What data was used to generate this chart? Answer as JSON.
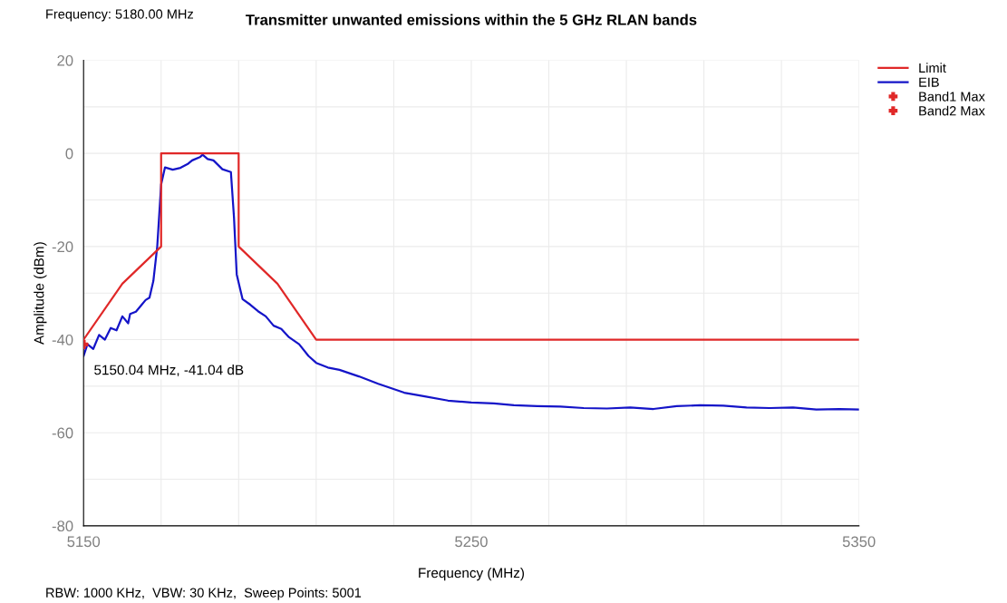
{
  "chart_data": {
    "type": "line",
    "title": "Transmitter unwanted emissions within the 5 GHz RLAN bands",
    "xlabel": "Frequency (MHz)",
    "ylabel": "Amplitude (dBm)",
    "annotations": [
      "Frequency: 5180.00 MHz",
      "RBW: 1000 KHz,  VBW: 30 KHz,  Sweep Points: 5001",
      {
        "text": "5150.04 MHz, -41.04 dB",
        "x": 5150.04,
        "y": -41.04
      }
    ],
    "xlim": [
      5150,
      5350
    ],
    "ylim": [
      -80,
      20
    ],
    "xticks": [
      5150,
      {
        "value": 5170,
        "label": null
      },
      {
        "value": 5190,
        "label": null
      },
      {
        "value": 5210,
        "label": null
      },
      {
        "value": 5230,
        "label": null
      },
      5250,
      {
        "value": 5270,
        "label": null
      },
      {
        "value": 5290,
        "label": null
      },
      {
        "value": 5310,
        "label": null
      },
      {
        "value": 5330,
        "label": null
      },
      5350
    ],
    "yticks": [
      -80,
      {
        "value": -70,
        "label": null
      },
      -60,
      {
        "value": -50,
        "label": null
      },
      -40,
      {
        "value": -30,
        "label": null
      },
      -20,
      {
        "value": -10,
        "label": null
      },
      0,
      {
        "value": 10,
        "label": null
      },
      20
    ],
    "grid": true,
    "legend": "top right",
    "line_style": "solid",
    "series": [
      {
        "name": "Limit",
        "color": "#e02828",
        "x": [
          5150,
          5160,
          5170,
          5170,
          5190,
          5190,
          5200,
          5210,
          5350
        ],
        "values": [
          -40,
          -28,
          -20,
          0,
          0,
          -20,
          -28,
          -40,
          -40
        ]
      },
      {
        "name": "EIB",
        "color": "#1414c8",
        "x": [
          5150,
          5151,
          5152.5,
          5154,
          5155.5,
          5157,
          5158.5,
          5160,
          5161.5,
          5162,
          5163.5,
          5165,
          5166,
          5167,
          5168,
          5169,
          5170,
          5171,
          5173,
          5175,
          5177,
          5178,
          5180,
          5180.7,
          5182,
          5183.5,
          5185.8,
          5188,
          5188.8,
          5189.5,
          5191,
          5193,
          5195,
          5197,
          5199,
          5201,
          5203,
          5205.6,
          5208,
          5210,
          5213,
          5216,
          5221,
          5226,
          5232.7,
          5238,
          5244,
          5250,
          5255.8,
          5261,
          5267,
          5273,
          5279,
          5285,
          5291,
          5297,
          5303,
          5309,
          5315,
          5321,
          5327,
          5333,
          5339,
          5345,
          5350
        ],
        "values": [
          -43.5,
          -41,
          -42,
          -39,
          -40,
          -37.5,
          -38,
          -35,
          -36.5,
          -34.5,
          -34,
          -32.5,
          -31.5,
          -31,
          -27.4,
          -20,
          -6.7,
          -3,
          -3.5,
          -3.1,
          -2.2,
          -1.5,
          -0.8,
          -0.3,
          -1.2,
          -1.5,
          -3.4,
          -4,
          -13.8,
          -26,
          -31.3,
          -32.5,
          -33.9,
          -35,
          -37,
          -37.7,
          -39.5,
          -41,
          -43.5,
          -45,
          -46,
          -46.5,
          -47.9,
          -49.5,
          -51.4,
          -52.2,
          -53.1,
          -53.5,
          -53.7,
          -54.1,
          -54.3,
          -54.4,
          -54.7,
          -54.8,
          -54.6,
          -54.9,
          -54.3,
          -54.1,
          -54.2,
          -54.6,
          -54.7,
          -54.6,
          -55,
          -54.9,
          -55
        ]
      },
      {
        "name": "Band1 Max",
        "type": "scatter",
        "marker": "cross",
        "color": "#e02828",
        "x": [
          5150.04
        ],
        "values": [
          -41.04
        ]
      },
      {
        "name": "Band2 Max",
        "type": "scatter",
        "marker": "cross",
        "color": "#e02828"
      }
    ]
  }
}
